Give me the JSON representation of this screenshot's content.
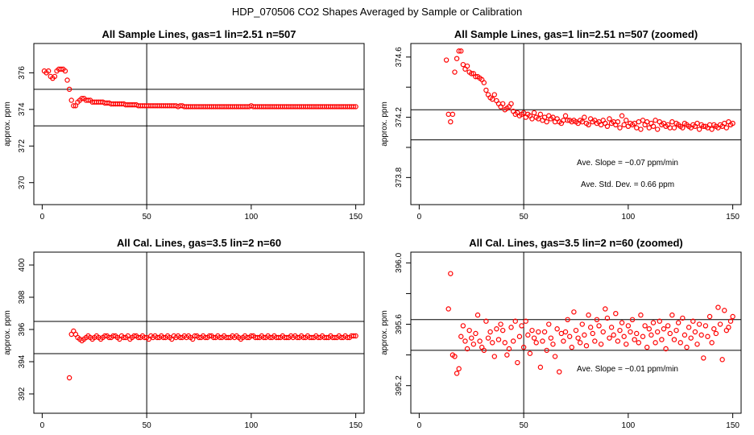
{
  "figure_title": "HDP_070506  CO2 Shapes Averaged by Sample or Calibration",
  "chart_data": [
    {
      "type": "scatter",
      "title": "All Sample Lines, gas=1 lin=2.51 n=507",
      "xlabel": "",
      "ylabel": "approx. ppm",
      "xlim": [
        -4,
        154
      ],
      "ylim": [
        368.8,
        377.6
      ],
      "xticks": [
        0,
        50,
        100,
        150
      ],
      "yticks": [
        370,
        372,
        374,
        376
      ],
      "hlines": [
        375.1,
        373.1
      ],
      "vlines": [
        50
      ],
      "point_color": "#ff0000",
      "series": [
        {
          "x_start": 1,
          "x_end": 150,
          "values": [
            376.1,
            376.0,
            376.1,
            375.8,
            375.7,
            375.8,
            376.1,
            376.2,
            376.2,
            376.2,
            376.1,
            375.6,
            375.1,
            374.5,
            374.2,
            374.2,
            374.4,
            374.5,
            374.6,
            374.6,
            374.5,
            374.5,
            374.5,
            374.4,
            374.4,
            374.4,
            374.4,
            374.4,
            374.4,
            374.35,
            374.35,
            374.35,
            374.3,
            374.3,
            374.3,
            374.3,
            374.3,
            374.3,
            374.3,
            374.25,
            374.25,
            374.25,
            374.25,
            374.25,
            374.25,
            374.2,
            374.2,
            374.2,
            374.2,
            374.2,
            374.2,
            374.2,
            374.2,
            374.2,
            374.2,
            374.2,
            374.2,
            374.2,
            374.2,
            374.2,
            374.2,
            374.2,
            374.2,
            374.2,
            374.15,
            374.2,
            374.2,
            374.15,
            374.15,
            374.15,
            374.15,
            374.15,
            374.15,
            374.15,
            374.15,
            374.15,
            374.15,
            374.15,
            374.15,
            374.15,
            374.15,
            374.15,
            374.15,
            374.15,
            374.15,
            374.15,
            374.15,
            374.15,
            374.15,
            374.15,
            374.15,
            374.15,
            374.15,
            374.15,
            374.15,
            374.15,
            374.15,
            374.15,
            374.15,
            374.2,
            374.15,
            374.15,
            374.15,
            374.15,
            374.15,
            374.15,
            374.15,
            374.15,
            374.15,
            374.15,
            374.15,
            374.15,
            374.15,
            374.15,
            374.15,
            374.15,
            374.15,
            374.15,
            374.15,
            374.15,
            374.15,
            374.15,
            374.15,
            374.15,
            374.15,
            374.15,
            374.15,
            374.15,
            374.15,
            374.15,
            374.15,
            374.15,
            374.15,
            374.15,
            374.15,
            374.15,
            374.15,
            374.15,
            374.15,
            374.15,
            374.15,
            374.15,
            374.15,
            374.15,
            374.15,
            374.15,
            374.15,
            374.15,
            374.15,
            374.15
          ]
        }
      ],
      "annotations": []
    },
    {
      "type": "scatter",
      "title": "All Sample Lines, gas=1 lin=2.51 n=507 (zoomed)",
      "xlabel": "",
      "ylabel": "approx. ppm",
      "xlim": [
        -4,
        154
      ],
      "ylim": [
        373.62,
        374.69
      ],
      "xticks": [
        0,
        50,
        100,
        150
      ],
      "yticks": [
        373.8,
        374.2,
        374.6
      ],
      "yticks_minor": [
        374.0,
        374.4
      ],
      "hlines": [
        374.25,
        374.05
      ],
      "vlines": [
        50
      ],
      "point_color": "#ff0000",
      "series": [
        {
          "x_start": 13,
          "x_end": 150,
          "values": [
            374.58,
            374.22,
            374.17,
            374.22,
            374.5,
            374.59,
            374.64,
            374.64,
            374.55,
            374.52,
            374.54,
            374.5,
            374.49,
            374.49,
            374.47,
            374.47,
            374.46,
            374.45,
            374.43,
            374.38,
            374.35,
            374.33,
            374.32,
            374.35,
            374.31,
            374.29,
            374.27,
            374.29,
            374.25,
            374.26,
            374.27,
            374.29,
            374.24,
            374.22,
            374.23,
            374.21,
            374.22,
            374.23,
            374.2,
            374.22,
            374.21,
            374.19,
            374.23,
            374.2,
            374.19,
            374.22,
            374.18,
            374.2,
            374.17,
            374.21,
            374.19,
            374.2,
            374.17,
            374.19,
            374.17,
            374.16,
            374.18,
            374.21,
            374.18,
            374.18,
            374.17,
            374.18,
            374.17,
            374.16,
            374.18,
            374.17,
            374.2,
            374.16,
            374.15,
            374.19,
            374.17,
            374.18,
            374.16,
            374.17,
            374.15,
            374.18,
            374.16,
            374.14,
            374.19,
            374.16,
            374.17,
            374.15,
            374.17,
            374.13,
            374.21,
            374.15,
            374.18,
            374.14,
            374.16,
            374.15,
            374.16,
            374.13,
            374.17,
            374.12,
            374.18,
            374.15,
            374.17,
            374.13,
            374.16,
            374.14,
            374.18,
            374.12,
            374.17,
            374.15,
            374.16,
            374.14,
            374.15,
            374.13,
            374.17,
            374.13,
            374.16,
            374.15,
            374.14,
            374.13,
            374.16,
            374.15,
            374.14,
            374.13,
            374.15,
            374.14,
            374.16,
            374.12,
            374.15,
            374.14,
            374.14,
            374.13,
            374.15,
            374.12,
            374.15,
            374.14,
            374.13,
            374.15,
            374.14,
            374.16,
            374.13,
            374.17,
            374.15,
            374.16
          ]
        }
      ],
      "annotations": [
        "Ave. Slope =  −0.07  ppm/min",
        "Ave. Std. Dev. =  0.66  ppm"
      ]
    },
    {
      "type": "scatter",
      "title": "All Cal. Lines, gas=3.5 lin=2 n=60",
      "xlabel": "",
      "ylabel": "approx. ppm",
      "xlim": [
        -4,
        154
      ],
      "ylim": [
        390.8,
        400.8
      ],
      "xticks": [
        0,
        50,
        100,
        150
      ],
      "yticks": [
        392,
        394,
        396,
        398,
        400
      ],
      "hlines": [
        396.5,
        394.5
      ],
      "vlines": [
        50
      ],
      "point_color": "#ff0000",
      "isolated_points": [
        {
          "x": 13,
          "y": 393.0
        }
      ],
      "series": [
        {
          "x_start": 14,
          "x_end": 150,
          "values": [
            395.7,
            395.9,
            395.7,
            395.5,
            395.4,
            395.3,
            395.4,
            395.5,
            395.6,
            395.5,
            395.4,
            395.5,
            395.6,
            395.5,
            395.4,
            395.5,
            395.6,
            395.6,
            395.5,
            395.5,
            395.6,
            395.6,
            395.5,
            395.4,
            395.6,
            395.5,
            395.5,
            395.6,
            395.4,
            395.5,
            395.6,
            395.6,
            395.5,
            395.5,
            395.6,
            395.5,
            395.5,
            395.4,
            395.6,
            395.5,
            395.6,
            395.5,
            395.5,
            395.6,
            395.5,
            395.5,
            395.6,
            395.5,
            395.4,
            395.6,
            395.5,
            395.6,
            395.5,
            395.5,
            395.6,
            395.5,
            395.6,
            395.5,
            395.4,
            395.6,
            395.6,
            395.5,
            395.5,
            395.6,
            395.5,
            395.5,
            395.6,
            395.6,
            395.5,
            395.5,
            395.6,
            395.5,
            395.5,
            395.6,
            395.5,
            395.5,
            395.5,
            395.6,
            395.5,
            395.6,
            395.5,
            395.4,
            395.5,
            395.6,
            395.5,
            395.5,
            395.6,
            395.6,
            395.5,
            395.5,
            395.5,
            395.6,
            395.5,
            395.5,
            395.6,
            395.5,
            395.5,
            395.6,
            395.5,
            395.5,
            395.5,
            395.6,
            395.5,
            395.5,
            395.5,
            395.6,
            395.5,
            395.6,
            395.5,
            395.5,
            395.6,
            395.5,
            395.5,
            395.6,
            395.5,
            395.5,
            395.5,
            395.6,
            395.5,
            395.5,
            395.6,
            395.5,
            395.5,
            395.5,
            395.6,
            395.5,
            395.5,
            395.5,
            395.6,
            395.5,
            395.5,
            395.6,
            395.5,
            395.5,
            395.6,
            395.6,
            395.6
          ]
        }
      ],
      "annotations": []
    },
    {
      "type": "scatter",
      "title": "All Cal. Lines, gas=3.5 lin=2 n=60 (zoomed)",
      "xlabel": "",
      "ylabel": "approx. ppm",
      "xlim": [
        -4,
        154
      ],
      "ylim": [
        395.02,
        396.07
      ],
      "xticks": [
        0,
        50,
        100,
        150
      ],
      "yticks": [
        395.2,
        395.6,
        396.0
      ],
      "yticks_minor": [
        395.4,
        395.8
      ],
      "hlines": [
        395.63,
        395.43
      ],
      "vlines": [
        50
      ],
      "point_color": "#ff0000",
      "series": [
        {
          "x_start": 14,
          "x_end": 150,
          "values": [
            395.7,
            395.93,
            395.4,
            395.39,
            395.28,
            395.31,
            395.52,
            395.59,
            395.49,
            395.44,
            395.56,
            395.51,
            395.47,
            395.54,
            395.66,
            395.49,
            395.45,
            395.43,
            395.62,
            395.51,
            395.55,
            395.48,
            395.39,
            395.57,
            395.5,
            395.6,
            395.56,
            395.48,
            395.4,
            395.44,
            395.58,
            395.49,
            395.62,
            395.35,
            395.52,
            395.59,
            395.45,
            395.62,
            395.53,
            395.41,
            395.56,
            395.51,
            395.48,
            395.55,
            395.32,
            395.49,
            395.55,
            395.43,
            395.6,
            395.51,
            395.47,
            395.39,
            395.57,
            395.29,
            395.54,
            395.49,
            395.55,
            395.63,
            395.52,
            395.45,
            395.68,
            395.56,
            395.51,
            395.48,
            395.6,
            395.53,
            395.46,
            395.66,
            395.58,
            395.54,
            395.49,
            395.63,
            395.59,
            395.47,
            395.55,
            395.7,
            395.64,
            395.51,
            395.58,
            395.53,
            395.67,
            395.49,
            395.56,
            395.61,
            395.52,
            395.47,
            395.59,
            395.55,
            395.63,
            395.5,
            395.54,
            395.48,
            395.66,
            395.52,
            395.59,
            395.45,
            395.57,
            395.53,
            395.61,
            395.48,
            395.55,
            395.62,
            395.5,
            395.57,
            395.44,
            395.59,
            395.54,
            395.66,
            395.5,
            395.56,
            395.61,
            395.48,
            395.64,
            395.53,
            395.45,
            395.58,
            395.51,
            395.62,
            395.55,
            395.47,
            395.6,
            395.53,
            395.38,
            395.59,
            395.52,
            395.65,
            395.48,
            395.57,
            395.54,
            395.71,
            395.6,
            395.37,
            395.69,
            395.56,
            395.58,
            395.62,
            395.65
          ]
        }
      ],
      "annotations": [
        "Ave. Slope =  −0.01  ppm/min"
      ]
    }
  ]
}
